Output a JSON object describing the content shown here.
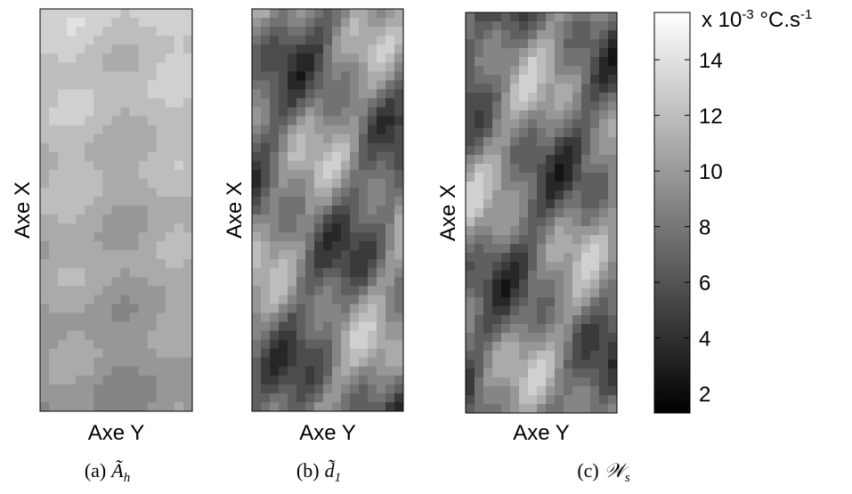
{
  "panels": [
    {
      "ylabel": "Axe X",
      "xlabel": "Axe Y",
      "caption": "(a)",
      "symbol": "Ã",
      "subscript": "h"
    },
    {
      "ylabel": "Axe X",
      "xlabel": "Axe Y",
      "caption": "(b)",
      "symbol": "d̃",
      "subscript": "1"
    },
    {
      "ylabel": "Axe X",
      "xlabel": "Axe Y",
      "caption": "(c)",
      "symbol": "𝒲",
      "subscript": "s"
    }
  ],
  "colorbar": {
    "unit": [
      "x 10",
      "-3",
      " °C.s",
      "-1"
    ],
    "lim": [
      1.3,
      15.7
    ],
    "ticks": [
      2,
      4,
      6,
      8,
      10,
      12,
      14
    ]
  }
}
